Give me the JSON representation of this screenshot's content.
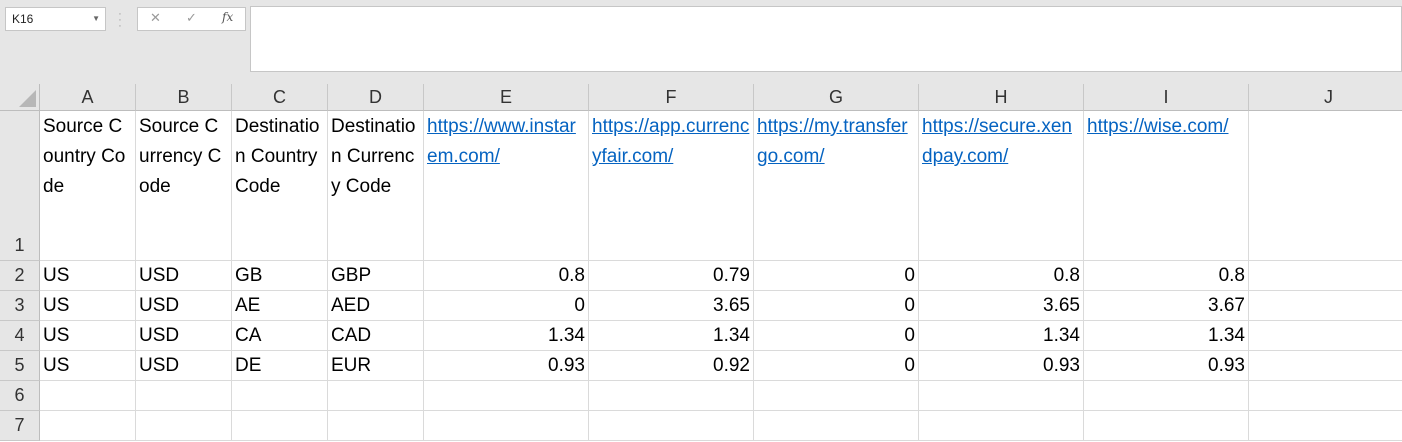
{
  "name_box": "K16",
  "formula_bar": {
    "cancel_icon": "✕",
    "enter_icon": "✓",
    "fx_label": "fx",
    "content": ""
  },
  "columns": [
    "A",
    "B",
    "C",
    "D",
    "E",
    "F",
    "G",
    "H",
    "I",
    "J"
  ],
  "rows": [
    "1",
    "2",
    "3",
    "4",
    "5",
    "6",
    "7"
  ],
  "headers": {
    "A": "Source Country Code",
    "B": "Source Currency Code",
    "C": "Destination Country Code",
    "D": "Destination Currency Code",
    "E": "https://www.instarem.com/",
    "F": "https://app.currencyfair.com/",
    "G": "https://my.transfergo.com/",
    "H": "https://secure.xendpay.com/",
    "I": "https://wise.com/"
  },
  "data_rows": [
    {
      "A": "US",
      "B": "USD",
      "C": "GB",
      "D": "GBP",
      "E": "0.8",
      "F": "0.79",
      "G": "0",
      "H": "0.8",
      "I": "0.8"
    },
    {
      "A": "US",
      "B": "USD",
      "C": "AE",
      "D": "AED",
      "E": "0",
      "F": "3.65",
      "G": "0",
      "H": "3.65",
      "I": "3.67"
    },
    {
      "A": "US",
      "B": "USD",
      "C": "CA",
      "D": "CAD",
      "E": "1.34",
      "F": "1.34",
      "G": "0",
      "H": "1.34",
      "I": "1.34"
    },
    {
      "A": "US",
      "B": "USD",
      "C": "DE",
      "D": "EUR",
      "E": "0.93",
      "F": "0.92",
      "G": "0",
      "H": "0.93",
      "I": "0.93"
    }
  ],
  "colors": {
    "link": "#0563c1",
    "header_bg": "#e6e6e6",
    "gridline": "#dadada"
  }
}
